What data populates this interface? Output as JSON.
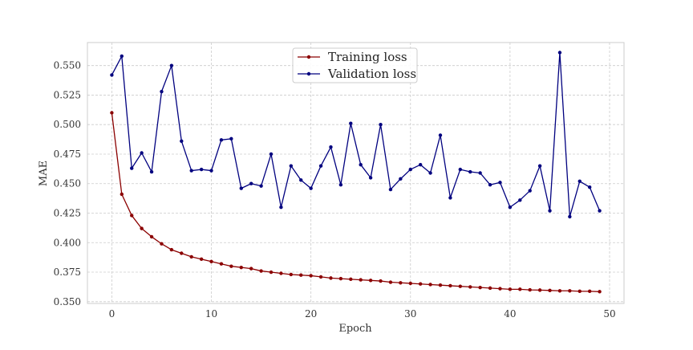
{
  "chart_data": {
    "type": "line",
    "title": "",
    "xlabel": "Epoch",
    "ylabel": "MAE",
    "xlim": [
      -2.45,
      51.45
    ],
    "ylim": [
      0.3485,
      0.5695
    ],
    "xticks": [
      0,
      10,
      20,
      30,
      40,
      50
    ],
    "yticks": [
      0.35,
      0.375,
      0.4,
      0.425,
      0.45,
      0.475,
      0.5,
      0.525,
      0.55
    ],
    "ytick_labels": [
      "0.350",
      "0.375",
      "0.400",
      "0.425",
      "0.450",
      "0.475",
      "0.500",
      "0.525",
      "0.550"
    ],
    "grid": true,
    "legend_position": "top-center",
    "x": [
      0,
      1,
      2,
      3,
      4,
      5,
      6,
      7,
      8,
      9,
      10,
      11,
      12,
      13,
      14,
      15,
      16,
      17,
      18,
      19,
      20,
      21,
      22,
      23,
      24,
      25,
      26,
      27,
      28,
      29,
      30,
      31,
      32,
      33,
      34,
      35,
      36,
      37,
      38,
      39,
      40,
      41,
      42,
      43,
      44,
      45,
      46,
      47,
      48,
      49
    ],
    "series": [
      {
        "name": "Training loss",
        "color": "#8b0000",
        "values": [
          0.51,
          0.441,
          0.423,
          0.412,
          0.405,
          0.399,
          0.394,
          0.391,
          0.388,
          0.386,
          0.384,
          0.382,
          0.38,
          0.379,
          0.378,
          0.376,
          0.375,
          0.374,
          0.373,
          0.3725,
          0.372,
          0.371,
          0.37,
          0.3695,
          0.369,
          0.3685,
          0.368,
          0.3675,
          0.3665,
          0.366,
          0.3655,
          0.365,
          0.3645,
          0.364,
          0.3635,
          0.363,
          0.3625,
          0.362,
          0.3615,
          0.361,
          0.3605,
          0.3605,
          0.36,
          0.3598,
          0.3595,
          0.3592,
          0.3592,
          0.3588,
          0.3588,
          0.3585
        ]
      },
      {
        "name": "Validation loss",
        "color": "#00007f",
        "values": [
          0.542,
          0.558,
          0.463,
          0.476,
          0.46,
          0.528,
          0.55,
          0.486,
          0.461,
          0.462,
          0.461,
          0.487,
          0.488,
          0.446,
          0.45,
          0.448,
          0.475,
          0.43,
          0.465,
          0.453,
          0.446,
          0.465,
          0.481,
          0.449,
          0.501,
          0.466,
          0.455,
          0.5,
          0.445,
          0.454,
          0.462,
          0.466,
          0.459,
          0.491,
          0.438,
          0.462,
          0.46,
          0.459,
          0.449,
          0.451,
          0.43,
          0.436,
          0.444,
          0.465,
          0.427,
          0.561,
          0.422,
          0.452,
          0.447,
          0.427
        ]
      }
    ]
  }
}
